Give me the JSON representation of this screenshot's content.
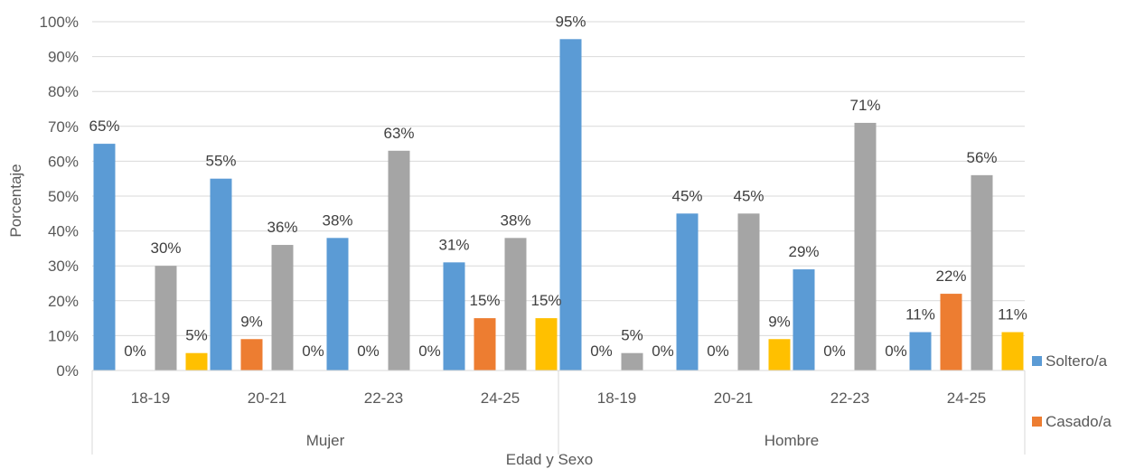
{
  "chart_data": {
    "type": "bar",
    "xlabel": "Edad y Sexo",
    "ylabel": "Porcentaje",
    "ylim": [
      0,
      100
    ],
    "ytick_labels": [
      "0%",
      "10%",
      "20%",
      "30%",
      "40%",
      "50%",
      "60%",
      "70%",
      "80%",
      "90%",
      "100%"
    ],
    "grid": true,
    "legend_position": "right",
    "groups": [
      {
        "label": "Mujer",
        "categories": [
          "18-19",
          "20-21",
          "22-23",
          "24-25"
        ]
      },
      {
        "label": "Hombre",
        "categories": [
          "18-19",
          "20-21",
          "22-23",
          "24-25"
        ]
      }
    ],
    "categories": [
      "18-19",
      "20-21",
      "22-23",
      "24-25",
      "18-19",
      "20-21",
      "22-23",
      "24-25"
    ],
    "series": [
      {
        "name": "Soltero/a",
        "color": "#5b9bd5",
        "values": [
          65,
          55,
          38,
          31,
          95,
          45,
          29,
          11
        ]
      },
      {
        "name": "Casado/a",
        "color": "#ed7d31",
        "values": [
          0,
          9,
          0,
          15,
          0,
          0,
          0,
          22
        ]
      },
      {
        "color": "#a5a5a5",
        "values": [
          30,
          36,
          63,
          38,
          5,
          45,
          71,
          56
        ]
      },
      {
        "color": "#ffc000",
        "values": [
          5,
          0,
          0,
          15,
          0,
          9,
          0,
          11
        ]
      }
    ],
    "data_labels": [
      [
        "65%",
        "55%",
        "38%",
        "31%",
        "95%",
        "45%",
        "29%",
        "11%"
      ],
      [
        "0%",
        "9%",
        "0%",
        "15%",
        "0%",
        "0%",
        "0%",
        "22%"
      ],
      [
        "30%",
        "36%",
        "63%",
        "38%",
        "5%",
        "45%",
        "71%",
        "56%"
      ],
      [
        "5%",
        "0%",
        "0%",
        "15%",
        "0%",
        "9%",
        "0%",
        "11%"
      ]
    ]
  }
}
